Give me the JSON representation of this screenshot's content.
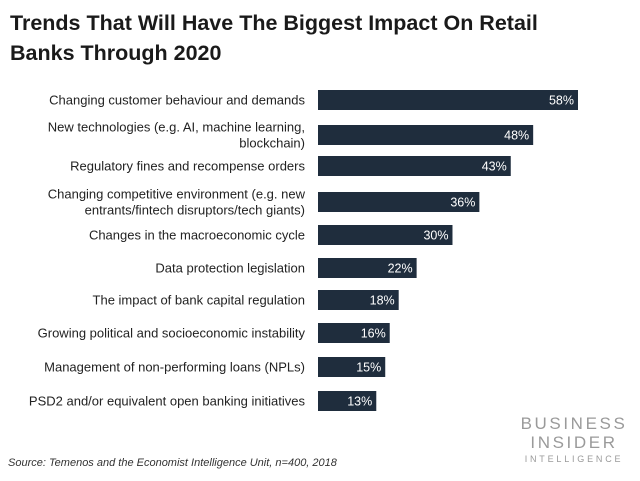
{
  "chart_data": {
    "type": "bar",
    "orientation": "horizontal",
    "title": "Trends That Will Have The Biggest Impact On Retail Banks Through 2020",
    "categories": [
      "Changing customer behaviour and demands",
      "New technologies (e.g. AI, machine learning, blockchain)",
      "Regulatory fines and recompense orders",
      "Changing competitive environment (e.g. new entrants/fintech disruptors/tech giants)",
      "Changes in the macroeconomic cycle",
      "Data protection legislation",
      "The impact of bank capital regulation",
      "Growing political and socioeconomic instability",
      "Management of non-performing loans (NPLs)",
      "PSD2 and/or equivalent open banking initiatives"
    ],
    "category_lines": [
      [
        "Changing customer behaviour and demands"
      ],
      [
        "New technologies (e.g. AI, machine learning,",
        "blockchain)"
      ],
      [
        "Regulatory fines and recompense orders"
      ],
      [
        "Changing competitive environment (e.g. new",
        "entrants/fintech disruptors/tech giants)"
      ],
      [
        "Changes in the macroeconomic cycle"
      ],
      [
        "Data protection legislation"
      ],
      [
        "The impact of bank capital regulation"
      ],
      [
        "Growing political and socioeconomic instability"
      ],
      [
        "Management of non-performing loans (NPLs)"
      ],
      [
        "PSD2 and/or equivalent open banking initiatives"
      ]
    ],
    "values": [
      58,
      48,
      43,
      36,
      30,
      22,
      18,
      16,
      15,
      13
    ],
    "value_labels": [
      "58%",
      "48%",
      "43%",
      "36%",
      "30%",
      "22%",
      "18%",
      "16%",
      "15%",
      "13%"
    ],
    "unit": "%",
    "xlim": [
      0,
      60
    ],
    "grid": false,
    "legend": "none",
    "bar_color": "#1f2d3d"
  },
  "source": "Source: Temenos and the Economist Intelligence Unit, n=400, 2018",
  "logo": {
    "line1": "BUSINESS",
    "line2": "INSIDER",
    "line3": "INTELLIGENCE"
  }
}
